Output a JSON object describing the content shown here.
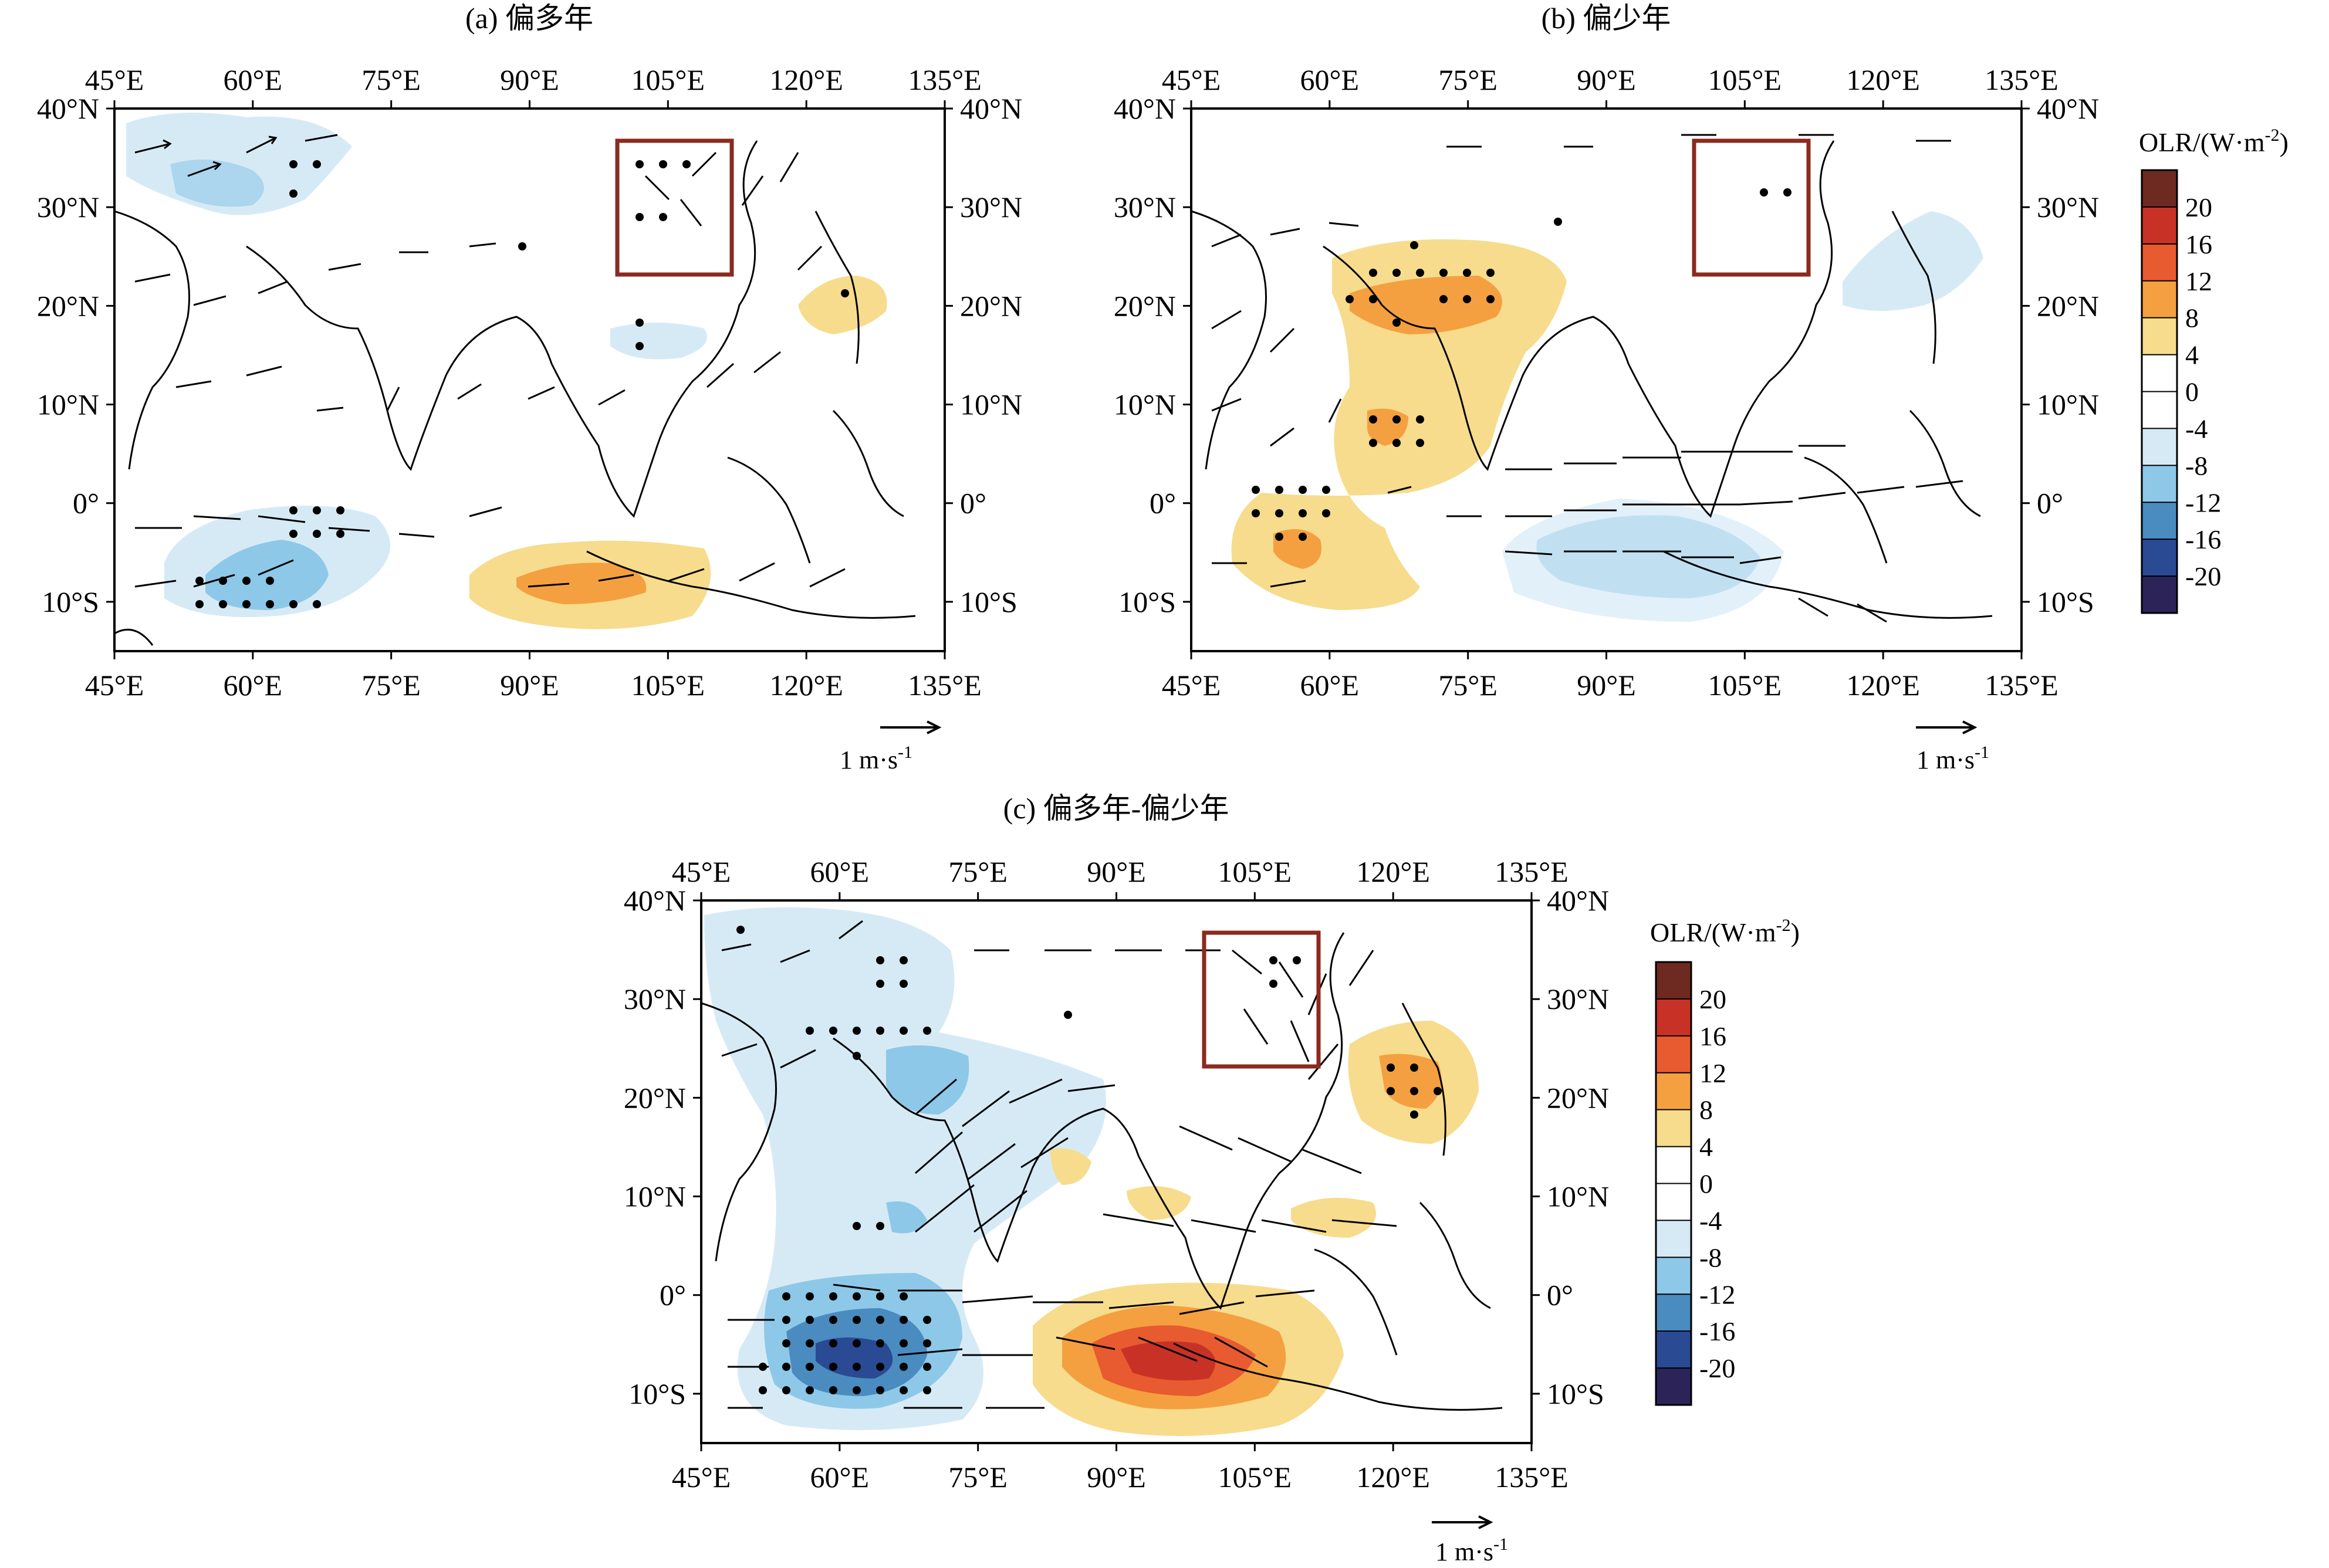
{
  "figure": {
    "lon_ticks": [
      "45°E",
      "60°E",
      "75°E",
      "90°E",
      "105°E",
      "120°E",
      "135°E"
    ],
    "lat_ticks": [
      "40°N",
      "30°N",
      "20°N",
      "10°N",
      "0°",
      "10°S"
    ],
    "lon_range": [
      45,
      135
    ],
    "lat_range": [
      -15,
      40
    ],
    "region_box": {
      "lon": [
        100,
        112
      ],
      "lat": [
        25,
        39
      ]
    },
    "box_color": "#8b2a1e"
  },
  "panels": [
    {
      "id": "a",
      "title": "(a) 偏多年",
      "reference_vector": "1 m·s",
      "reference_exp": "-1"
    },
    {
      "id": "b",
      "title": "(b) 偏少年",
      "reference_vector": "1 m·s",
      "reference_exp": "-1"
    },
    {
      "id": "c",
      "title": "(c) 偏多年-偏少年",
      "reference_vector": "1 m·s",
      "reference_exp": "-1"
    }
  ],
  "colorbar": {
    "title": "OLR/(W·m",
    "title_exp": "-2",
    "title_close": ")",
    "labels": [
      "20",
      "16",
      "12",
      "8",
      "4",
      "0",
      "-4",
      "-8",
      "-12",
      "-16",
      "-20"
    ],
    "colors": [
      "#6e2a20",
      "#c83226",
      "#e85a30",
      "#f4a040",
      "#f6dc8c",
      "#ffffff",
      "#ffffff",
      "#d6eaf6",
      "#8ec8e8",
      "#4a8cc0",
      "#2a4a94",
      "#2c2458"
    ]
  }
}
